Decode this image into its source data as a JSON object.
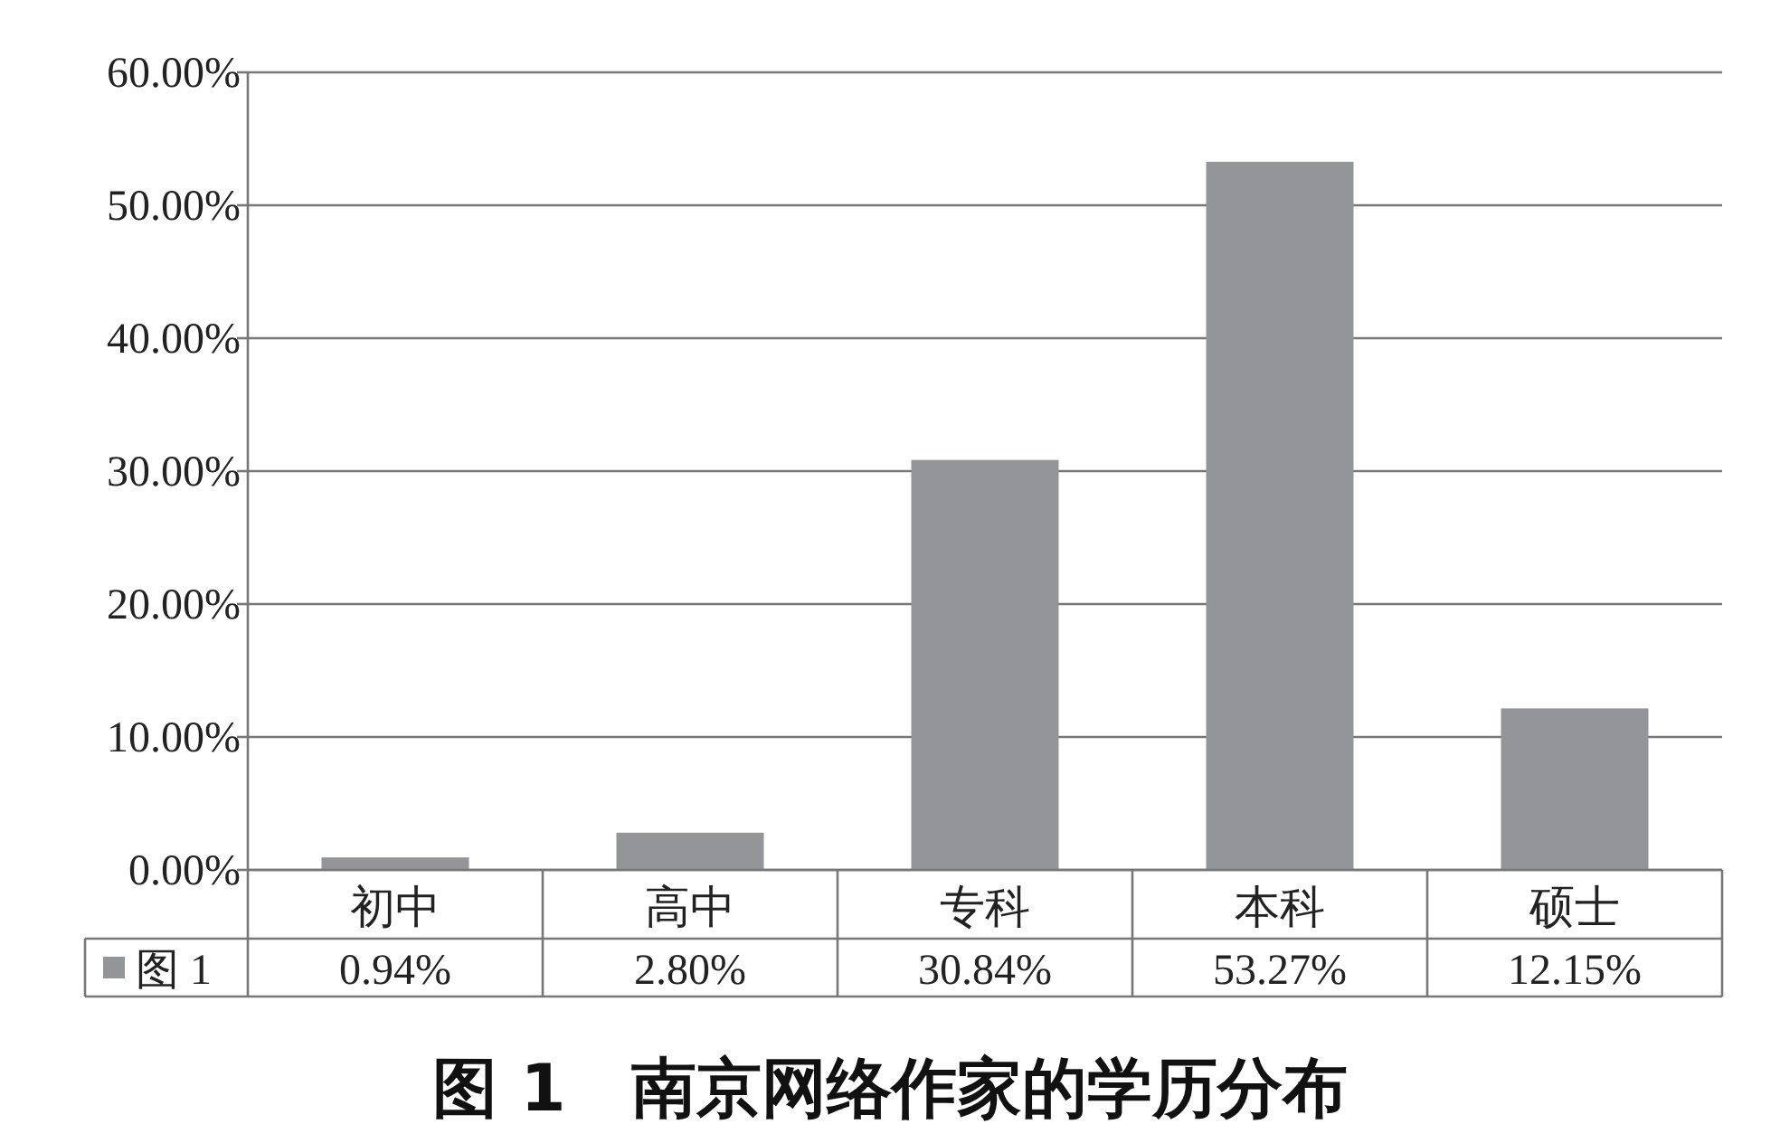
{
  "chart_data": {
    "type": "bar",
    "title": "图 1　南京网络作家的学历分布",
    "categories": [
      "初中",
      "高中",
      "专科",
      "本科",
      "硕士"
    ],
    "series": [
      {
        "name": "图 1",
        "color": "#939598",
        "values": [
          0.94,
          2.8,
          30.84,
          53.27,
          12.15
        ],
        "value_labels": [
          "0.94%",
          "2.80%",
          "30.84%",
          "53.27%",
          "12.15%"
        ]
      }
    ],
    "ylim": [
      0,
      60
    ],
    "yticks": [
      {
        "value": 0,
        "label": "0.00%"
      },
      {
        "value": 10,
        "label": "10.00%"
      },
      {
        "value": 20,
        "label": "20.00%"
      },
      {
        "value": 30,
        "label": "30.00%"
      },
      {
        "value": 40,
        "label": "40.00%"
      },
      {
        "value": 50,
        "label": "50.00%"
      },
      {
        "value": 60,
        "label": "60.00%"
      }
    ],
    "grid": "y",
    "legend": "bottom"
  }
}
